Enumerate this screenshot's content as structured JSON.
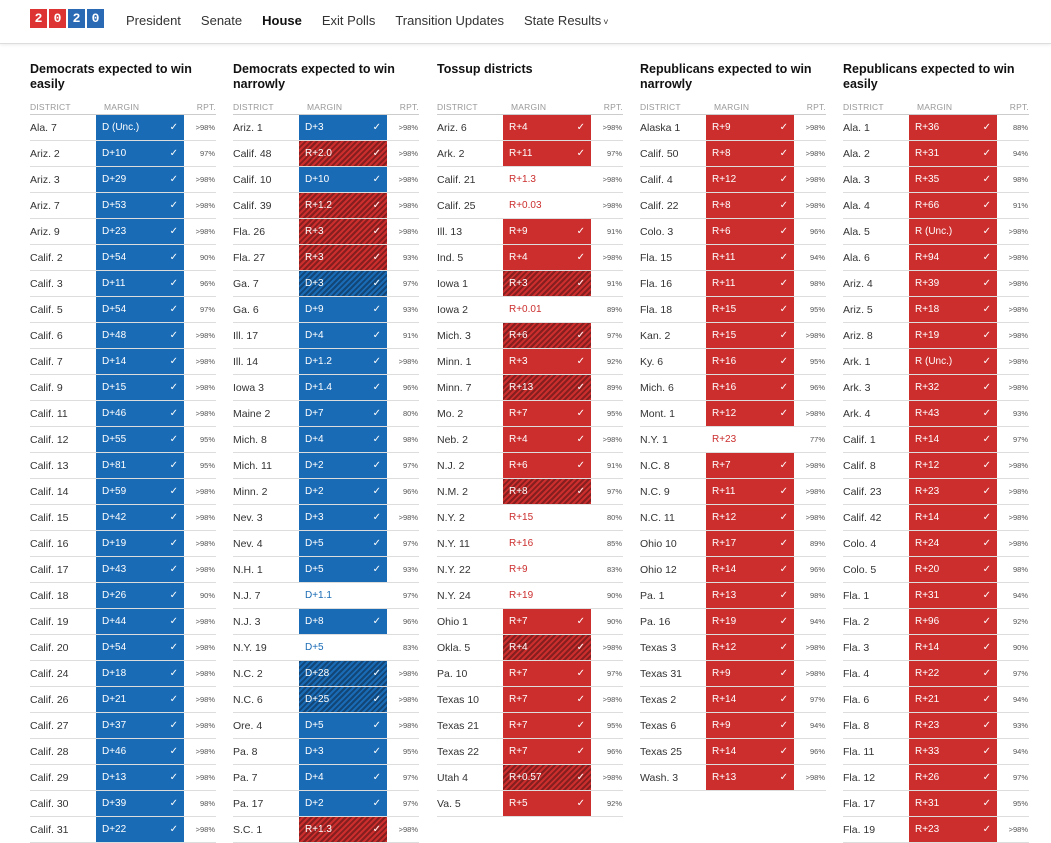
{
  "logo": {
    "digits": [
      "2",
      "0",
      "2",
      "0"
    ],
    "colors": [
      "#d33",
      "#d33",
      "#2a6ab5",
      "#2a6ab5"
    ]
  },
  "nav": [
    {
      "label": "President",
      "active": false
    },
    {
      "label": "Senate",
      "active": false
    },
    {
      "label": "House",
      "active": true
    },
    {
      "label": "Exit Polls",
      "active": false
    },
    {
      "label": "Transition Updates",
      "active": false
    },
    {
      "label": "State Results",
      "active": false,
      "caret": "˅"
    }
  ],
  "columns_header": {
    "district": "DISTRICT",
    "margin": "MARGIN",
    "rpt": "RPT."
  },
  "colors": {
    "dem": "#1a6bb5",
    "rep": "#cc2e2e"
  },
  "columns": [
    {
      "title": "Democrats expected to win easily",
      "rows": [
        [
          "Ala. 7",
          "D (Unc.)",
          "dem",
          "",
          ">98%"
        ],
        [
          "Ariz. 2",
          "D+10",
          "dem",
          "",
          "97%"
        ],
        [
          "Ariz. 3",
          "D+29",
          "dem",
          "",
          ">98%"
        ],
        [
          "Ariz. 7",
          "D+53",
          "dem",
          "",
          ">98%"
        ],
        [
          "Ariz. 9",
          "D+23",
          "dem",
          "",
          ">98%"
        ],
        [
          "Calif. 2",
          "D+54",
          "dem",
          "",
          "90%"
        ],
        [
          "Calif. 3",
          "D+11",
          "dem",
          "",
          "96%"
        ],
        [
          "Calif. 5",
          "D+54",
          "dem",
          "",
          "97%"
        ],
        [
          "Calif. 6",
          "D+48",
          "dem",
          "",
          ">98%"
        ],
        [
          "Calif. 7",
          "D+14",
          "dem",
          "",
          ">98%"
        ],
        [
          "Calif. 9",
          "D+15",
          "dem",
          "",
          ">98%"
        ],
        [
          "Calif. 11",
          "D+46",
          "dem",
          "",
          ">98%"
        ],
        [
          "Calif. 12",
          "D+55",
          "dem",
          "",
          "95%"
        ],
        [
          "Calif. 13",
          "D+81",
          "dem",
          "",
          "95%"
        ],
        [
          "Calif. 14",
          "D+59",
          "dem",
          "",
          ">98%"
        ],
        [
          "Calif. 15",
          "D+42",
          "dem",
          "",
          ">98%"
        ],
        [
          "Calif. 16",
          "D+19",
          "dem",
          "",
          ">98%"
        ],
        [
          "Calif. 17",
          "D+43",
          "dem",
          "",
          ">98%"
        ],
        [
          "Calif. 18",
          "D+26",
          "dem",
          "",
          "90%"
        ],
        [
          "Calif. 19",
          "D+44",
          "dem",
          "",
          ">98%"
        ],
        [
          "Calif. 20",
          "D+54",
          "dem",
          "",
          ">98%"
        ],
        [
          "Calif. 24",
          "D+18",
          "dem",
          "",
          ">98%"
        ],
        [
          "Calif. 26",
          "D+21",
          "dem",
          "",
          ">98%"
        ],
        [
          "Calif. 27",
          "D+37",
          "dem",
          "",
          ">98%"
        ],
        [
          "Calif. 28",
          "D+46",
          "dem",
          "",
          ">98%"
        ],
        [
          "Calif. 29",
          "D+13",
          "dem",
          "",
          ">98%"
        ],
        [
          "Calif. 30",
          "D+39",
          "dem",
          "",
          "98%"
        ],
        [
          "Calif. 31",
          "D+22",
          "dem",
          "",
          ">98%"
        ]
      ]
    },
    {
      "title": "Democrats expected to win narrowly",
      "rows": [
        [
          "Ariz. 1",
          "D+3",
          "dem",
          "",
          ">98%"
        ],
        [
          "Calif. 48",
          "R+2.0",
          "rep",
          "flip",
          ">98%"
        ],
        [
          "Calif. 10",
          "D+10",
          "dem",
          "",
          ">98%"
        ],
        [
          "Calif. 39",
          "R+1.2",
          "rep",
          "flip",
          ">98%"
        ],
        [
          "Fla. 26",
          "R+3",
          "rep",
          "flip",
          ">98%"
        ],
        [
          "Fla. 27",
          "R+3",
          "rep",
          "flip",
          "93%"
        ],
        [
          "Ga. 7",
          "D+3",
          "dem",
          "flip",
          "97%"
        ],
        [
          "Ga. 6",
          "D+9",
          "dem",
          "",
          "93%"
        ],
        [
          "Ill. 17",
          "D+4",
          "dem",
          "",
          "91%"
        ],
        [
          "Ill. 14",
          "D+1.2",
          "dem",
          "",
          ">98%"
        ],
        [
          "Iowa 3",
          "D+1.4",
          "dem",
          "",
          "96%"
        ],
        [
          "Maine 2",
          "D+7",
          "dem",
          "",
          "80%"
        ],
        [
          "Mich. 8",
          "D+4",
          "dem",
          "",
          "98%"
        ],
        [
          "Mich. 11",
          "D+2",
          "dem",
          "",
          "97%"
        ],
        [
          "Minn. 2",
          "D+2",
          "dem",
          "",
          "96%"
        ],
        [
          "Nev. 3",
          "D+3",
          "dem",
          "",
          ">98%"
        ],
        [
          "Nev. 4",
          "D+5",
          "dem",
          "",
          "97%"
        ],
        [
          "N.H. 1",
          "D+5",
          "dem",
          "",
          "93%"
        ],
        [
          "N.J. 7",
          "D+1.1",
          "dem",
          "plain",
          "97%"
        ],
        [
          "N.J. 3",
          "D+8",
          "dem",
          "",
          "96%"
        ],
        [
          "N.Y. 19",
          "D+5",
          "dem",
          "plain",
          "83%"
        ],
        [
          "N.C. 2",
          "D+28",
          "dem",
          "flip",
          ">98%"
        ],
        [
          "N.C. 6",
          "D+25",
          "dem",
          "flip",
          ">98%"
        ],
        [
          "Ore. 4",
          "D+5",
          "dem",
          "",
          ">98%"
        ],
        [
          "Pa. 8",
          "D+3",
          "dem",
          "",
          "95%"
        ],
        [
          "Pa. 7",
          "D+4",
          "dem",
          "",
          "97%"
        ],
        [
          "Pa. 17",
          "D+2",
          "dem",
          "",
          "97%"
        ],
        [
          "S.C. 1",
          "R+1.3",
          "rep",
          "flip",
          ">98%"
        ]
      ]
    },
    {
      "title": "Tossup districts",
      "rows": [
        [
          "Ariz. 6",
          "R+4",
          "rep",
          "",
          ">98%"
        ],
        [
          "Ark. 2",
          "R+11",
          "rep",
          "",
          "97%"
        ],
        [
          "Calif. 21",
          "R+1.3",
          "rep",
          "plain",
          ">98%"
        ],
        [
          "Calif. 25",
          "R+0.03",
          "rep",
          "plain",
          ">98%"
        ],
        [
          "Ill. 13",
          "R+9",
          "rep",
          "",
          "91%"
        ],
        [
          "Ind. 5",
          "R+4",
          "rep",
          "",
          ">98%"
        ],
        [
          "Iowa 1",
          "R+3",
          "rep",
          "flip",
          "91%"
        ],
        [
          "Iowa 2",
          "R+0.01",
          "rep",
          "plain",
          "89%"
        ],
        [
          "Mich. 3",
          "R+6",
          "rep",
          "flip",
          "97%"
        ],
        [
          "Minn. 1",
          "R+3",
          "rep",
          "",
          "92%"
        ],
        [
          "Minn. 7",
          "R+13",
          "rep",
          "flip",
          "89%"
        ],
        [
          "Mo. 2",
          "R+7",
          "rep",
          "",
          "95%"
        ],
        [
          "Neb. 2",
          "R+4",
          "rep",
          "",
          ">98%"
        ],
        [
          "N.J. 2",
          "R+6",
          "rep",
          "",
          "91%"
        ],
        [
          "N.M. 2",
          "R+8",
          "rep",
          "flip",
          "97%"
        ],
        [
          "N.Y. 2",
          "R+15",
          "rep",
          "plain",
          "80%"
        ],
        [
          "N.Y. 11",
          "R+16",
          "rep",
          "plain",
          "85%"
        ],
        [
          "N.Y. 22",
          "R+9",
          "rep",
          "plain",
          "83%"
        ],
        [
          "N.Y. 24",
          "R+19",
          "rep",
          "plain",
          "90%"
        ],
        [
          "Ohio 1",
          "R+7",
          "rep",
          "",
          "90%"
        ],
        [
          "Okla. 5",
          "R+4",
          "rep",
          "flip",
          ">98%"
        ],
        [
          "Pa. 10",
          "R+7",
          "rep",
          "",
          "97%"
        ],
        [
          "Texas 10",
          "R+7",
          "rep",
          "",
          ">98%"
        ],
        [
          "Texas 21",
          "R+7",
          "rep",
          "",
          "95%"
        ],
        [
          "Texas 22",
          "R+7",
          "rep",
          "",
          "96%"
        ],
        [
          "Utah 4",
          "R+0.57",
          "rep",
          "flip",
          ">98%"
        ],
        [
          "Va. 5",
          "R+5",
          "rep",
          "",
          "92%"
        ]
      ]
    },
    {
      "title": "Republicans expected to win narrowly",
      "rows": [
        [
          "Alaska 1",
          "R+9",
          "rep",
          "",
          ">98%"
        ],
        [
          "Calif. 50",
          "R+8",
          "rep",
          "",
          ">98%"
        ],
        [
          "Calif. 4",
          "R+12",
          "rep",
          "",
          ">98%"
        ],
        [
          "Calif. 22",
          "R+8",
          "rep",
          "",
          ">98%"
        ],
        [
          "Colo. 3",
          "R+6",
          "rep",
          "",
          "96%"
        ],
        [
          "Fla. 15",
          "R+11",
          "rep",
          "",
          "94%"
        ],
        [
          "Fla. 16",
          "R+11",
          "rep",
          "",
          "98%"
        ],
        [
          "Fla. 18",
          "R+15",
          "rep",
          "",
          "95%"
        ],
        [
          "Kan. 2",
          "R+15",
          "rep",
          "",
          ">98%"
        ],
        [
          "Ky. 6",
          "R+16",
          "rep",
          "",
          "95%"
        ],
        [
          "Mich. 6",
          "R+16",
          "rep",
          "",
          "96%"
        ],
        [
          "Mont. 1",
          "R+12",
          "rep",
          "",
          ">98%"
        ],
        [
          "N.Y. 1",
          "R+23",
          "rep",
          "plain",
          "77%"
        ],
        [
          "N.C. 8",
          "R+7",
          "rep",
          "",
          ">98%"
        ],
        [
          "N.C. 9",
          "R+11",
          "rep",
          "",
          ">98%"
        ],
        [
          "N.C. 11",
          "R+12",
          "rep",
          "",
          ">98%"
        ],
        [
          "Ohio 10",
          "R+17",
          "rep",
          "",
          "89%"
        ],
        [
          "Ohio 12",
          "R+14",
          "rep",
          "",
          "96%"
        ],
        [
          "Pa. 1",
          "R+13",
          "rep",
          "",
          "98%"
        ],
        [
          "Pa. 16",
          "R+19",
          "rep",
          "",
          "94%"
        ],
        [
          "Texas 3",
          "R+12",
          "rep",
          "",
          ">98%"
        ],
        [
          "Texas 31",
          "R+9",
          "rep",
          "",
          ">98%"
        ],
        [
          "Texas 2",
          "R+14",
          "rep",
          "",
          "97%"
        ],
        [
          "Texas 6",
          "R+9",
          "rep",
          "",
          "94%"
        ],
        [
          "Texas 25",
          "R+14",
          "rep",
          "",
          "96%"
        ],
        [
          "Wash. 3",
          "R+13",
          "rep",
          "",
          ">98%"
        ]
      ]
    },
    {
      "title": "Republicans expected to win easily",
      "rows": [
        [
          "Ala. 1",
          "R+36",
          "rep",
          "",
          "88%"
        ],
        [
          "Ala. 2",
          "R+31",
          "rep",
          "",
          "94%"
        ],
        [
          "Ala. 3",
          "R+35",
          "rep",
          "",
          "98%"
        ],
        [
          "Ala. 4",
          "R+66",
          "rep",
          "",
          "91%"
        ],
        [
          "Ala. 5",
          "R (Unc.)",
          "rep",
          "",
          ">98%"
        ],
        [
          "Ala. 6",
          "R+94",
          "rep",
          "",
          ">98%"
        ],
        [
          "Ariz. 4",
          "R+39",
          "rep",
          "",
          ">98%"
        ],
        [
          "Ariz. 5",
          "R+18",
          "rep",
          "",
          ">98%"
        ],
        [
          "Ariz. 8",
          "R+19",
          "rep",
          "",
          ">98%"
        ],
        [
          "Ark. 1",
          "R (Unc.)",
          "rep",
          "",
          ">98%"
        ],
        [
          "Ark. 3",
          "R+32",
          "rep",
          "",
          ">98%"
        ],
        [
          "Ark. 4",
          "R+43",
          "rep",
          "",
          "93%"
        ],
        [
          "Calif. 1",
          "R+14",
          "rep",
          "",
          "97%"
        ],
        [
          "Calif. 8",
          "R+12",
          "rep",
          "",
          ">98%"
        ],
        [
          "Calif. 23",
          "R+23",
          "rep",
          "",
          ">98%"
        ],
        [
          "Calif. 42",
          "R+14",
          "rep",
          "",
          ">98%"
        ],
        [
          "Colo. 4",
          "R+24",
          "rep",
          "",
          ">98%"
        ],
        [
          "Colo. 5",
          "R+20",
          "rep",
          "",
          "98%"
        ],
        [
          "Fla. 1",
          "R+31",
          "rep",
          "",
          "94%"
        ],
        [
          "Fla. 2",
          "R+96",
          "rep",
          "",
          "92%"
        ],
        [
          "Fla. 3",
          "R+14",
          "rep",
          "",
          "90%"
        ],
        [
          "Fla. 4",
          "R+22",
          "rep",
          "",
          "97%"
        ],
        [
          "Fla. 6",
          "R+21",
          "rep",
          "",
          "94%"
        ],
        [
          "Fla. 8",
          "R+23",
          "rep",
          "",
          "93%"
        ],
        [
          "Fla. 11",
          "R+33",
          "rep",
          "",
          "94%"
        ],
        [
          "Fla. 12",
          "R+26",
          "rep",
          "",
          "97%"
        ],
        [
          "Fla. 17",
          "R+31",
          "rep",
          "",
          "95%"
        ],
        [
          "Fla. 19",
          "R+23",
          "rep",
          "",
          ">98%"
        ]
      ]
    }
  ]
}
